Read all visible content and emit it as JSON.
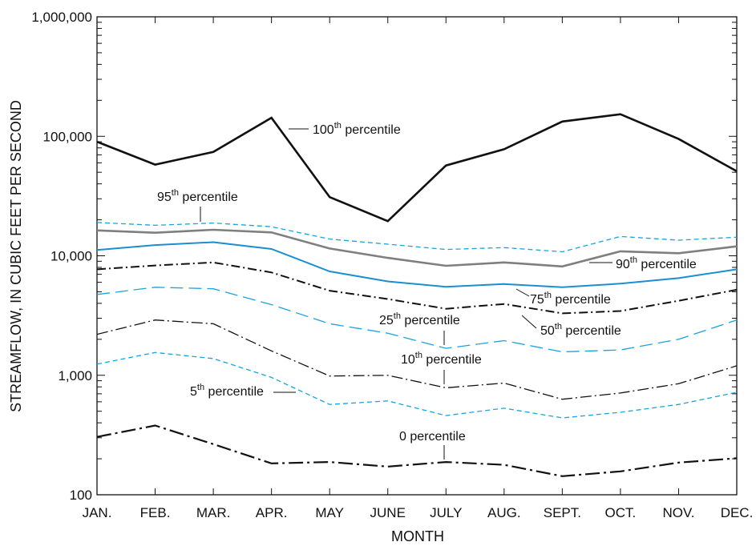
{
  "chart_data": {
    "type": "line",
    "title": "",
    "xlabel": "MONTH",
    "ylabel": "STREAMFLOW, IN CUBIC FEET PER SECOND",
    "y_scale": "log",
    "ylim": [
      100,
      1000000
    ],
    "y_ticks": [
      {
        "value": 100,
        "label": "100"
      },
      {
        "value": 1000,
        "label": "1,000"
      },
      {
        "value": 10000,
        "label": "10,000"
      },
      {
        "value": 100000,
        "label": "100,000"
      },
      {
        "value": 1000000,
        "label": "1,000,000"
      }
    ],
    "categories": [
      "JAN.",
      "FEB.",
      "MAR.",
      "APR.",
      "MAY",
      "JUNE",
      "JULY",
      "AUG.",
      "SEPT.",
      "OCT.",
      "NOV.",
      "DEC."
    ],
    "grid": false,
    "series": [
      {
        "name": "100th percentile",
        "color": "#111111",
        "style": "solid-thick",
        "values": [
          90000,
          58000,
          74000,
          143000,
          31000,
          19500,
          57000,
          78000,
          133000,
          153000,
          95000,
          51000
        ]
      },
      {
        "name": "95th percentile",
        "color": "#1aa3dd",
        "style": "short-dash",
        "values": [
          19000,
          18000,
          18800,
          17500,
          13800,
          12500,
          11300,
          11700,
          10800,
          14500,
          13500,
          14300
        ]
      },
      {
        "name": "90th percentile",
        "color": "#7f7f7f",
        "style": "solid-thick",
        "values": [
          16300,
          15600,
          16500,
          15700,
          11500,
          9600,
          8250,
          8800,
          8150,
          10900,
          10500,
          12000
        ]
      },
      {
        "name": "75th percentile",
        "color": "#1a8fd0",
        "style": "solid",
        "values": [
          11200,
          12300,
          13000,
          11400,
          7400,
          6100,
          5500,
          5800,
          5450,
          5850,
          6500,
          7700
        ]
      },
      {
        "name": "50th percentile",
        "color": "#111111",
        "style": "dash-dot",
        "values": [
          7700,
          8300,
          8800,
          7250,
          5100,
          4350,
          3600,
          3950,
          3300,
          3450,
          4200,
          5200
        ]
      },
      {
        "name": "25th percentile",
        "color": "#1aa3dd",
        "style": "long-dash",
        "values": [
          4750,
          5450,
          5300,
          3900,
          2700,
          2250,
          1680,
          1950,
          1570,
          1630,
          2000,
          2900
        ]
      },
      {
        "name": "10th percentile",
        "color": "#111111",
        "style": "dash-dot-thin",
        "values": [
          2200,
          2900,
          2700,
          1600,
          985,
          1000,
          785,
          860,
          630,
          710,
          850,
          1200
        ]
      },
      {
        "name": "5th percentile",
        "color": "#1aa3dd",
        "style": "short-dash",
        "values": [
          1240,
          1550,
          1380,
          960,
          570,
          610,
          460,
          530,
          440,
          490,
          570,
          720
        ]
      },
      {
        "name": "0 percentile",
        "color": "#111111",
        "style": "dash-dot-thick",
        "values": [
          305,
          380,
          265,
          183,
          188,
          172,
          188,
          178,
          143,
          157,
          186,
          202
        ]
      }
    ],
    "annotations": [
      {
        "id": "p100",
        "base": "100",
        "sup": "th",
        "rest": " percentile"
      },
      {
        "id": "p95",
        "base": "95",
        "sup": "th",
        "rest": " percentile"
      },
      {
        "id": "p90",
        "base": "90",
        "sup": "th",
        "rest": " percentile"
      },
      {
        "id": "p75",
        "base": "75",
        "sup": "th",
        "rest": " percentile"
      },
      {
        "id": "p50",
        "base": "50",
        "sup": "th",
        "rest": " percentile"
      },
      {
        "id": "p25",
        "base": "25",
        "sup": "th",
        "rest": " percentile"
      },
      {
        "id": "p10",
        "base": "10",
        "sup": "th",
        "rest": " percentile"
      },
      {
        "id": "p5",
        "base": "5",
        "sup": "th",
        "rest": " percentile"
      },
      {
        "id": "p0",
        "base": "0 percentile",
        "sup": "",
        "rest": ""
      }
    ]
  }
}
